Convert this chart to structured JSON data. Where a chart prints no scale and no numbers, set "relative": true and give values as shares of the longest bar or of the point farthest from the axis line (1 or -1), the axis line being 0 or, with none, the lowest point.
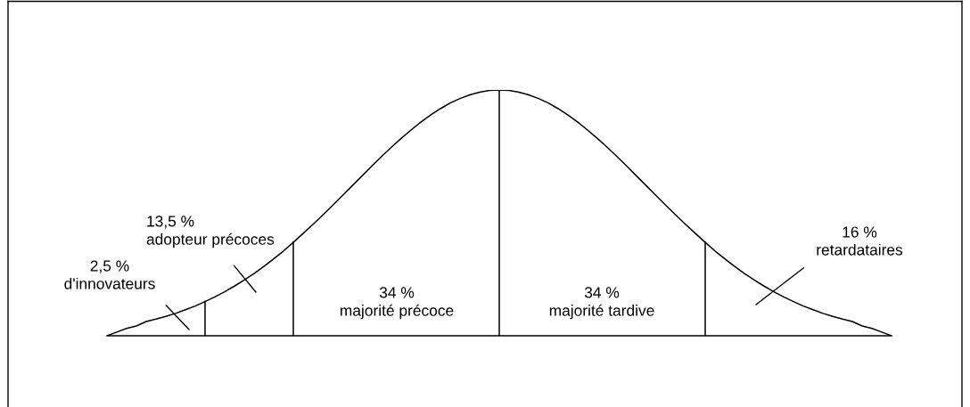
{
  "chart_data": {
    "type": "line",
    "categories": [
      null,
      null,
      null,
      null,
      null,
      null,
      null,
      null,
      null,
      null,
      null,
      null,
      null,
      null,
      null,
      null,
      null,
      null,
      null,
      null,
      null,
      null,
      null,
      null,
      null,
      null,
      null,
      null,
      null,
      null,
      null,
      null,
      null,
      null,
      null,
      null,
      null,
      null,
      null,
      null,
      null,
      null,
      null,
      null,
      null,
      null,
      null,
      null,
      null,
      null,
      null,
      null,
      null,
      null,
      null,
      null,
      null,
      null,
      null,
      null,
      null,
      null,
      null,
      null,
      null,
      null,
      null,
      null,
      null,
      null,
      null,
      null,
      null,
      null,
      null,
      null,
      null,
      null,
      null,
      null,
      null
    ],
    "relative": true,
    "series": [
      {
        "color": "#000000",
        "values": [
          0,
          0.015,
          0.03,
          0.04,
          0.058,
          0.068,
          0.079,
          0.091,
          0.106,
          0.121,
          0.139,
          0.158,
          0.179,
          0.202,
          0.227,
          0.253,
          0.282,
          0.313,
          0.345,
          0.38,
          0.416,
          0.453,
          0.491,
          0.53,
          0.57,
          0.61,
          0.65,
          0.69,
          0.729,
          0.767,
          0.803,
          0.837,
          0.869,
          0.898,
          0.924,
          0.947,
          0.965,
          0.98,
          0.991,
          0.998,
          1,
          0.998,
          0.991,
          0.98,
          0.965,
          0.947,
          0.924,
          0.898,
          0.869,
          0.837,
          0.803,
          0.767,
          0.729,
          0.69,
          0.65,
          0.61,
          0.57,
          0.53,
          0.491,
          0.453,
          0.416,
          0.38,
          0.345,
          0.313,
          0.282,
          0.253,
          0.227,
          0.202,
          0.179,
          0.158,
          0.139,
          0.121,
          0.106,
          0.091,
          0.079,
          0.068,
          0.058,
          0.04,
          0.03,
          0.015,
          0
        ]
      }
    ],
    "annotations": [
      "2,5 %\nd'innovateurs",
      "13,5 %\nadopteur précoces",
      "34 %\nmajorité précoce",
      "34 %\nmajorité tardive",
      "16 %\nretardataires"
    ]
  }
}
